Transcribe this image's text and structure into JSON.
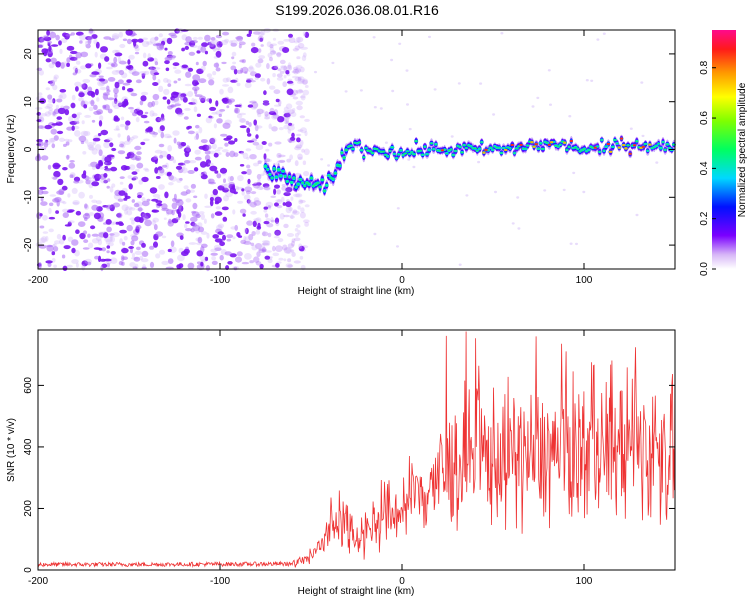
{
  "title": "S199.2026.036.08.01.R16",
  "chart_data": [
    {
      "type": "heatmap",
      "name": "spectrogram",
      "xlabel": "Height of straight line (km)",
      "ylabel": "Frequency (Hz)",
      "xlim": [
        -200,
        150
      ],
      "ylim": [
        -25,
        25
      ],
      "xticks": [
        -200,
        -100,
        0,
        100
      ],
      "yticks": [
        -20,
        -10,
        0,
        10,
        20
      ],
      "colorbar": {
        "label": "Normalized spectral amplitude",
        "range": [
          0,
          0.95
        ],
        "ticks": [
          0.0,
          0.2,
          0.4,
          0.6,
          0.8
        ]
      },
      "signal_track": {
        "x": [
          -75,
          -65,
          -55,
          -45,
          -37,
          -33,
          -28,
          -20,
          -10,
          0,
          10,
          20,
          30,
          40,
          50,
          60,
          70,
          80,
          90,
          100,
          110,
          120,
          130,
          140,
          150
        ],
        "y": [
          -4,
          -6,
          -7,
          -8,
          -6,
          -1,
          1,
          0,
          0,
          -1,
          0,
          0,
          0,
          0,
          0,
          0,
          1,
          1,
          1,
          0,
          0,
          1,
          1,
          1,
          0
        ]
      },
      "noise_region_end_x": -52
    },
    {
      "type": "line",
      "name": "snr",
      "xlabel": "Height of straight line (km)",
      "ylabel": "SNR (10 * v/v)",
      "xlim": [
        -200,
        150
      ],
      "ylim": [
        0,
        780
      ],
      "xticks": [
        -200,
        -100,
        0,
        100
      ],
      "yticks": [
        0,
        200,
        400,
        600
      ],
      "color": "#ee3333",
      "envelope": {
        "x": [
          -200,
          -150,
          -100,
          -60,
          -50,
          -40,
          -35,
          -30,
          -25,
          -20,
          -15,
          -10,
          0,
          10,
          20,
          30,
          40,
          50,
          60,
          70,
          80,
          90,
          100,
          110,
          120,
          130,
          140,
          150
        ],
        "y": [
          18,
          18,
          19,
          20,
          40,
          120,
          180,
          150,
          110,
          130,
          150,
          170,
          200,
          250,
          300,
          340,
          360,
          370,
          370,
          370,
          375,
          380,
          390,
          400,
          400,
          400,
          390,
          380
        ]
      }
    }
  ]
}
